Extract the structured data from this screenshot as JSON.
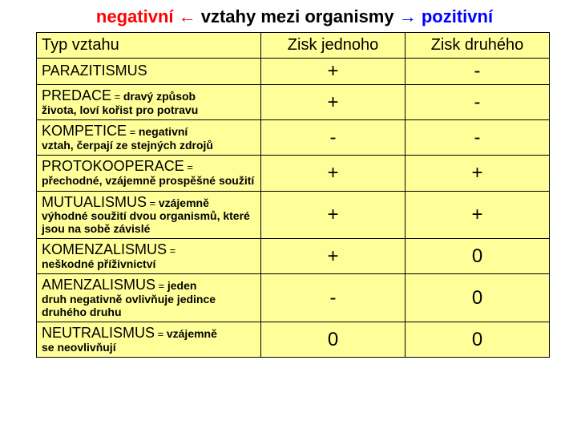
{
  "title": {
    "negative": "negativní ←",
    "middle": "vztahy mezi organismy",
    "positive": "→ pozitivní"
  },
  "headers": {
    "col1": "Typ vztahu",
    "col2": "Zisk jednoho",
    "col3": "Zisk druhého"
  },
  "rows": [
    {
      "term": "PARAZITISMUS",
      "eq": "",
      "desc": "",
      "inline_after_eq": "",
      "v1": "+",
      "v2": "-"
    },
    {
      "term": "PREDACE",
      "eq": " = ",
      "inline_after_eq": "dravý způsob",
      "desc": "života, loví kořist pro potravu",
      "v1": "+",
      "v2": "-"
    },
    {
      "term": "KOMPETICE",
      "eq": " = ",
      "inline_after_eq": "negativní",
      "desc": "vztah, čerpají ze stejných zdrojů",
      "v1": "-",
      "v2": "-"
    },
    {
      "term": "PROTOKOOPERACE",
      "eq": " =",
      "inline_after_eq": "",
      "desc": "přechodné, vzájemně prospěšné soužití",
      "v1": "+",
      "v2": "+"
    },
    {
      "term": "MUTUALISMUS",
      "eq": " = ",
      "inline_after_eq": "vzájemně",
      "desc": "výhodné soužití dvou organismů, které jsou na sobě závislé",
      "v1": "+",
      "v2": "+"
    },
    {
      "term": "KOMENZALISMUS",
      "eq": " =",
      "inline_after_eq": "",
      "desc": "neškodné příživnictví",
      "v1": "+",
      "v2": "0"
    },
    {
      "term": "AMENZALISMUS",
      "eq": " = ",
      "inline_after_eq": "jeden",
      "desc": "druh negativně ovlivňuje jedince druhého druhu",
      "v1": "-",
      "v2": "0"
    },
    {
      "term": "NEUTRALISMUS",
      "eq": " = ",
      "inline_after_eq": "vzájemně",
      "desc": "se neovlivňují",
      "v1": "0",
      "v2": "0"
    }
  ],
  "style": {
    "background": "#ffff99",
    "border_color": "#000000",
    "neg_color": "#ff0000",
    "pos_color": "#0000ff",
    "font": "Comic Sans MS"
  }
}
